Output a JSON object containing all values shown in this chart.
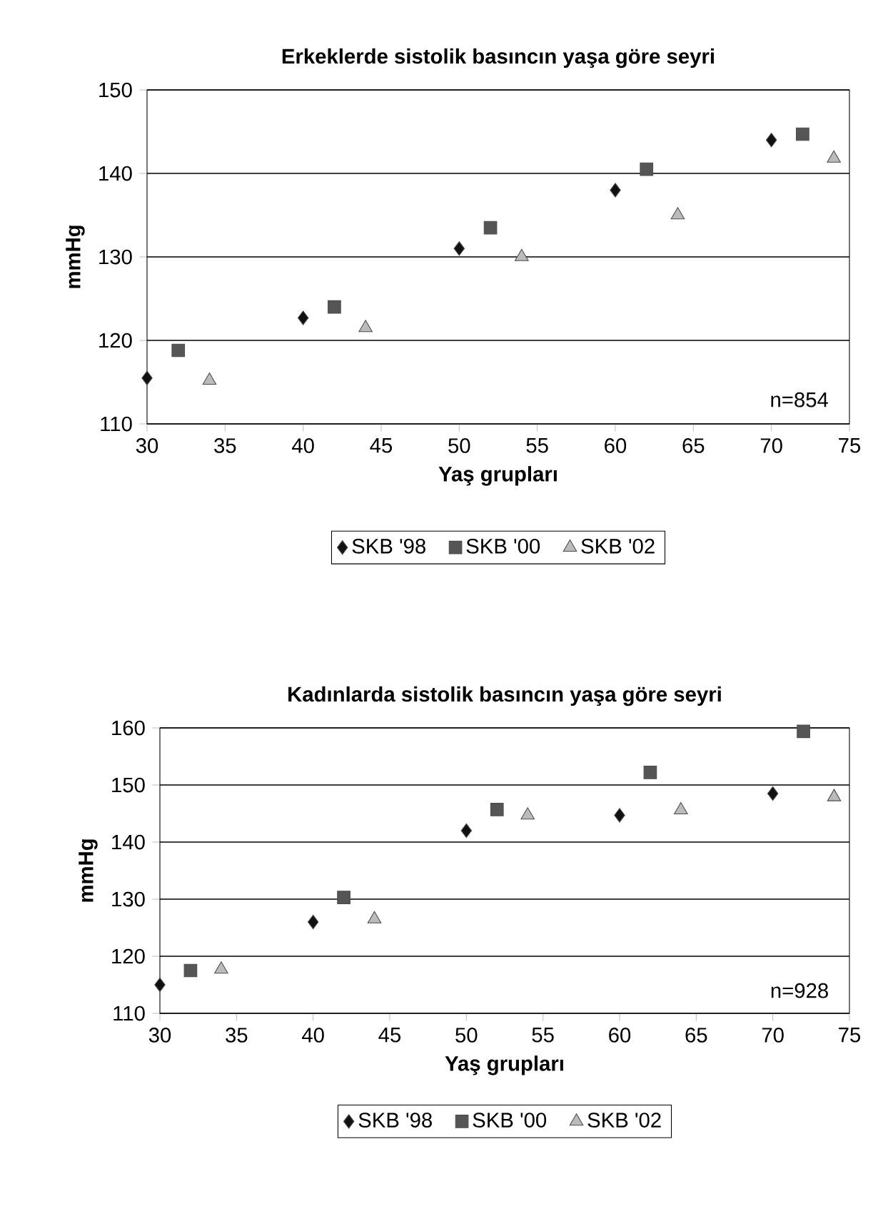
{
  "chart_data": [
    {
      "type": "scatter",
      "title": "Erkeklerde sistolik basıncın yaşa göre  seyri",
      "xlabel": "Yaş grupları",
      "ylabel": "mmHg",
      "xlim": [
        30,
        75
      ],
      "xticks": [
        30,
        35,
        40,
        45,
        50,
        55,
        60,
        65,
        70,
        75
      ],
      "ylim": [
        110,
        150
      ],
      "yticks": [
        110,
        120,
        130,
        140,
        150
      ],
      "grid": "y",
      "legend": "bottom",
      "annotations": [
        "n=854"
      ],
      "series": [
        {
          "name": "SKB '98",
          "color": "#111111",
          "marker": "diamond",
          "x": [
            30,
            40,
            50,
            60,
            70
          ],
          "values": [
            115.5,
            122.7,
            131,
            138,
            144
          ]
        },
        {
          "name": "SKB '00",
          "color": "#555555",
          "marker": "square",
          "x": [
            32,
            42,
            52,
            62,
            72
          ],
          "values": [
            118.8,
            124,
            133.5,
            140.5,
            144.7
          ]
        },
        {
          "name": "SKB '02",
          "color": "#bbbbbb",
          "marker": "triangle",
          "x": [
            34,
            44,
            54,
            64,
            74
          ],
          "values": [
            115.2,
            121.5,
            130,
            135,
            141.8
          ]
        }
      ]
    },
    {
      "type": "scatter",
      "title": "Kadınlarda sistolik basıncın yaşa göre  seyri",
      "xlabel": "Yaş grupları",
      "ylabel": "mmHg",
      "xlim": [
        30,
        75
      ],
      "xticks": [
        30,
        35,
        40,
        45,
        50,
        55,
        60,
        65,
        70,
        75
      ],
      "ylim": [
        110,
        160
      ],
      "yticks": [
        110,
        120,
        130,
        140,
        150,
        160
      ],
      "grid": "y",
      "legend": "bottom",
      "annotations": [
        "n=928"
      ],
      "series": [
        {
          "name": "SKB '98",
          "color": "#111111",
          "marker": "diamond",
          "x": [
            30,
            40,
            50,
            60,
            70
          ],
          "values": [
            115,
            126,
            142,
            144.7,
            148.5
          ]
        },
        {
          "name": "SKB '00",
          "color": "#555555",
          "marker": "square",
          "x": [
            32,
            42,
            52,
            62,
            72
          ],
          "values": [
            117.5,
            130.3,
            145.7,
            152.2,
            159.4
          ]
        },
        {
          "name": "SKB '02",
          "color": "#bbbbbb",
          "marker": "triangle",
          "x": [
            34,
            44,
            54,
            64,
            74
          ],
          "values": [
            117.7,
            126.5,
            144.7,
            145.6,
            147.9
          ]
        }
      ]
    }
  ]
}
